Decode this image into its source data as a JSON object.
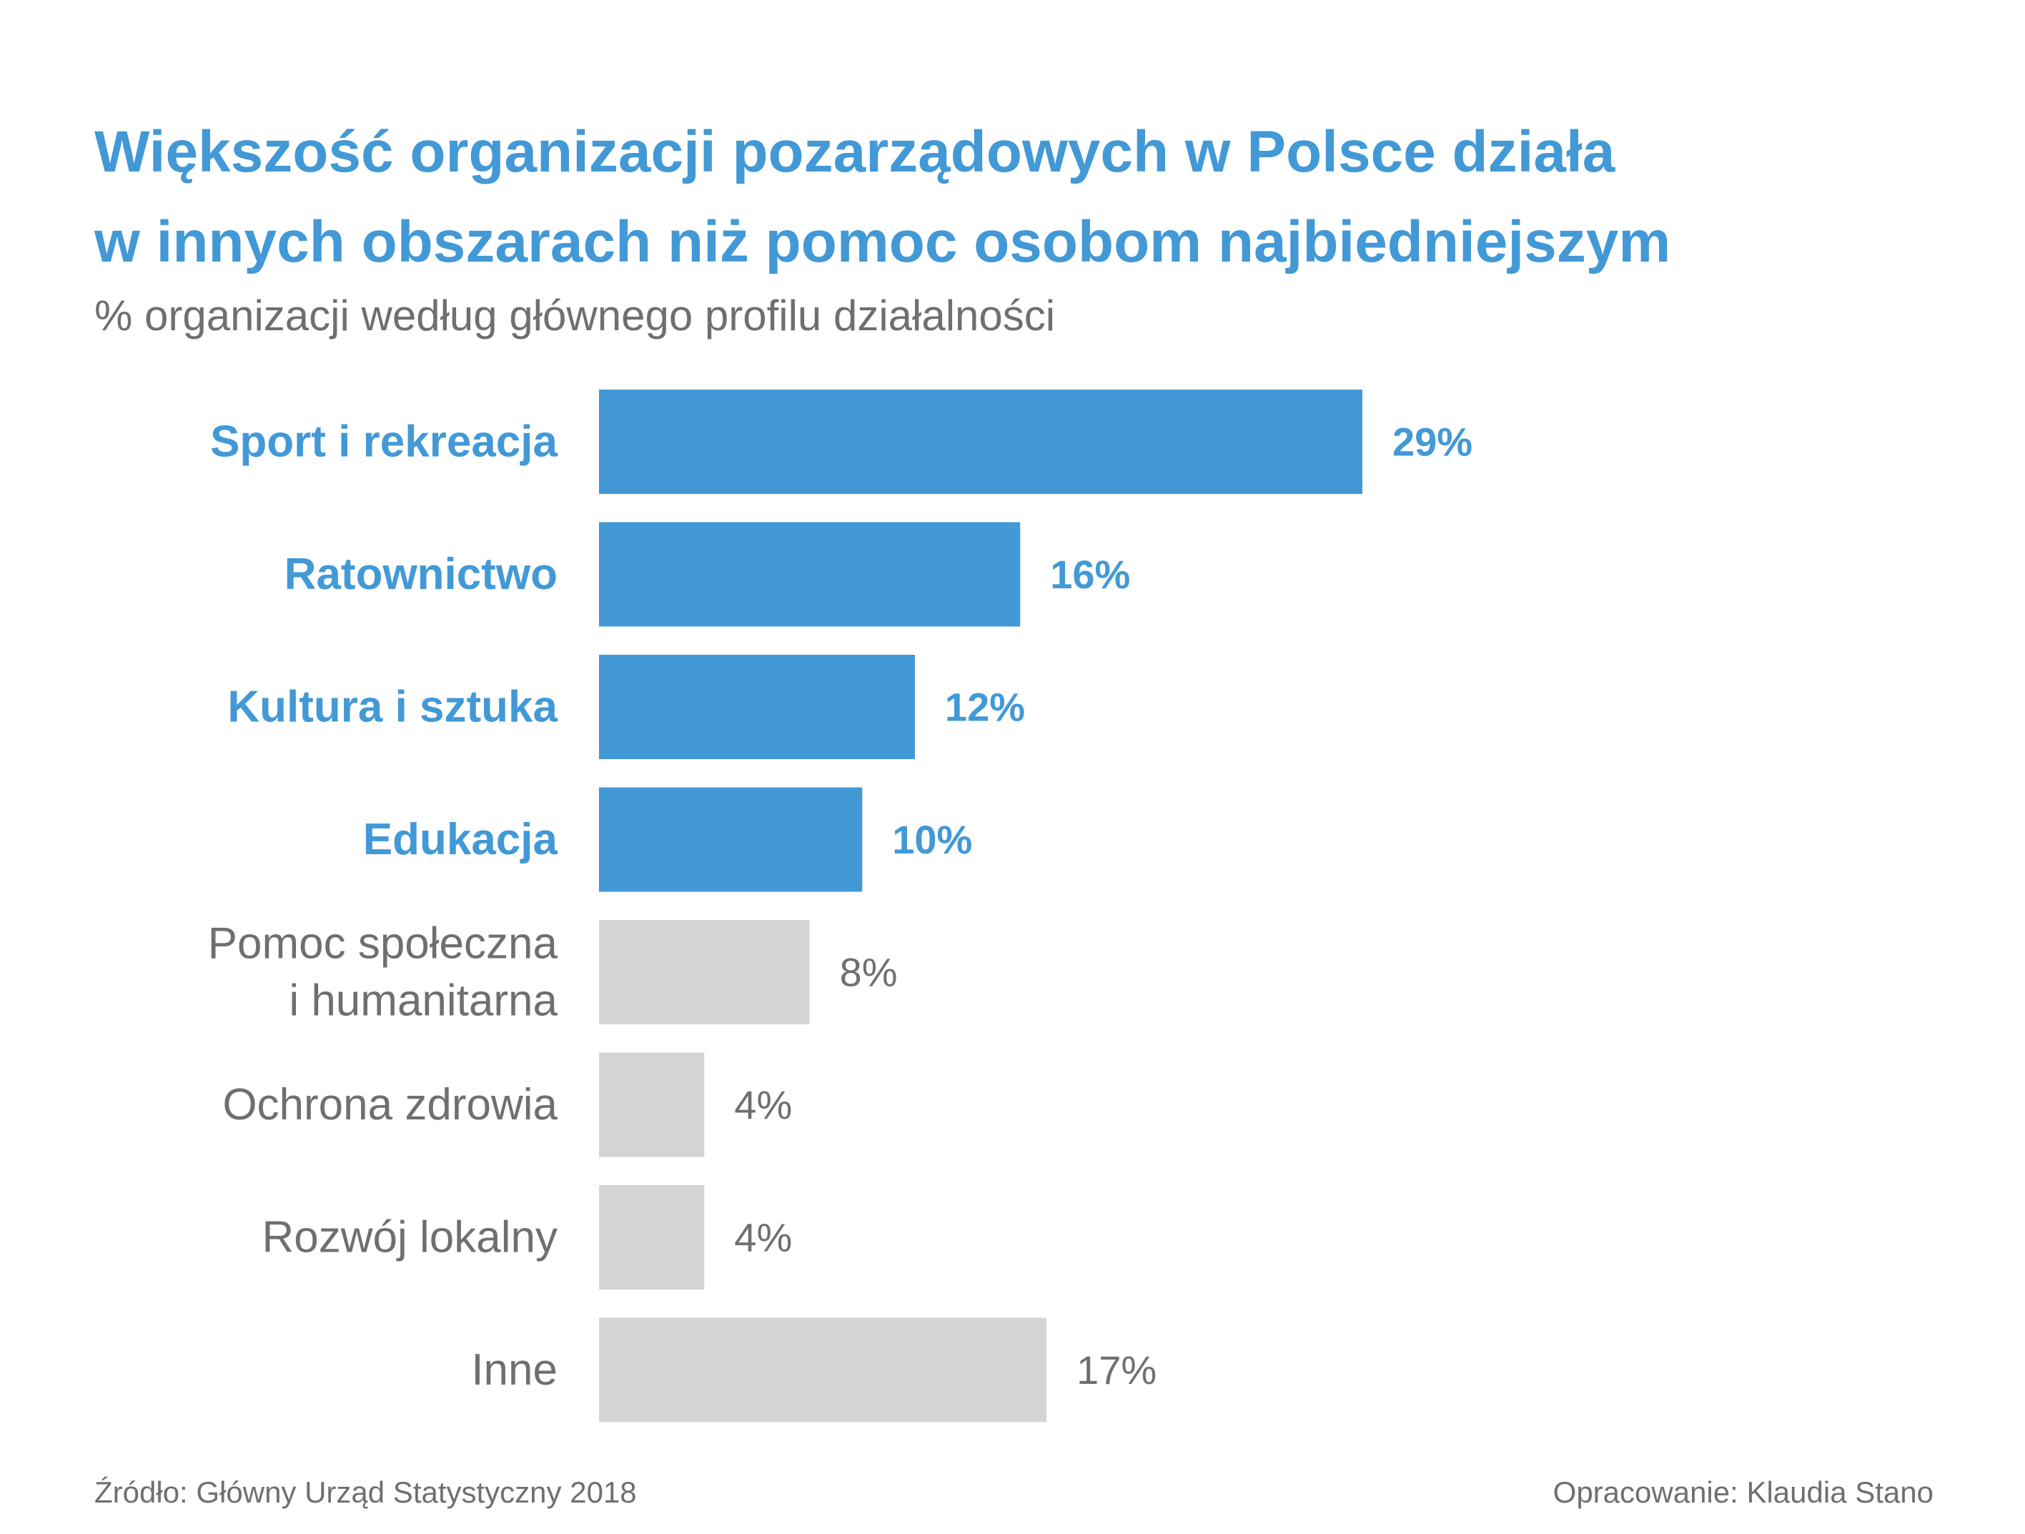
{
  "title_lines": [
    "Większość organizacji pozarządowych w Polsce działa",
    "w innych obszarach niż pomoc osobom najbiedniejszym"
  ],
  "subtitle": "% organizacji według głównego profilu działalności",
  "source": "Źródło: Główny Urząd Statystyczny 2018",
  "credit": "Opracowanie: Klaudia Stano",
  "colors": {
    "highlight": "#4299d6",
    "muted_bar": "#d4d4d4",
    "muted_text": "#6f6f6f"
  },
  "chart_data": {
    "type": "bar",
    "orientation": "horizontal",
    "title": "Większość organizacji pozarządowych w Polsce działa w innych obszarach niż pomoc osobom najbiedniejszym",
    "subtitle": "% organizacji według głównego profilu działalności",
    "categories": [
      [
        "Sport i rekreacja"
      ],
      [
        "Ratownictwo"
      ],
      [
        "Kultura i sztuka"
      ],
      [
        "Edukacja"
      ],
      [
        "Pomoc społeczna",
        "i humanitarna"
      ],
      [
        "Ochrona zdrowia"
      ],
      [
        "Rozwój lokalny"
      ],
      [
        "Inne"
      ]
    ],
    "values": [
      29,
      16,
      12,
      10,
      8,
      4,
      4,
      17
    ],
    "value_labels": [
      "29%",
      "16%",
      "12%",
      "10%",
      "8%",
      "4%",
      "4%",
      "17%"
    ],
    "highlighted": [
      true,
      true,
      true,
      true,
      false,
      false,
      false,
      false
    ],
    "unit": "%",
    "xlim": [
      0,
      29
    ],
    "grid": false,
    "legend": "none"
  }
}
